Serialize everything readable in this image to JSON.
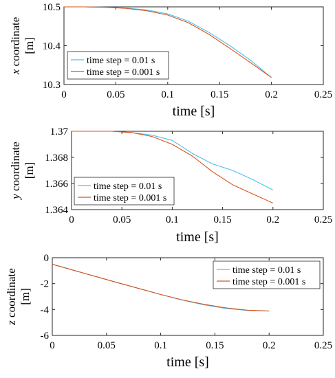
{
  "colors": {
    "series1": "#4dbeee",
    "series2": "#d95319",
    "axis": "#262626",
    "frame": "#262626"
  },
  "chart_data": [
    {
      "type": "line",
      "xlabel": "time [s]",
      "ylabel_var": "x",
      "ylabel_rest": " coordinate",
      "ylabel_unit": "[m]",
      "xlim": [
        0,
        0.25
      ],
      "ylim": [
        10.3,
        10.5
      ],
      "xticks": [
        0,
        0.05,
        0.1,
        0.15,
        0.2,
        0.25
      ],
      "xtick_labels": [
        "0",
        "0.05",
        "0.1",
        "0.15",
        "0.2",
        "0.25"
      ],
      "yticks": [
        10.3,
        10.4,
        10.5
      ],
      "ytick_labels": [
        "10.3",
        "10.4",
        "10.5"
      ],
      "grid": false,
      "legend_position": "lower-left",
      "series": [
        {
          "name": "time step = 0.01 s",
          "color": "#4dbeee",
          "x": [
            0,
            0.02,
            0.04,
            0.06,
            0.08,
            0.1,
            0.12,
            0.14,
            0.16,
            0.18,
            0.2
          ],
          "y": [
            10.5,
            10.5,
            10.499,
            10.497,
            10.492,
            10.482,
            10.463,
            10.434,
            10.4,
            10.362,
            10.318
          ]
        },
        {
          "name": "time step = 0.001 s",
          "color": "#d95319",
          "x": [
            0,
            0.02,
            0.04,
            0.06,
            0.08,
            0.1,
            0.12,
            0.14,
            0.16,
            0.18,
            0.2
          ],
          "y": [
            10.5,
            10.5,
            10.499,
            10.496,
            10.49,
            10.479,
            10.459,
            10.429,
            10.393,
            10.356,
            10.318
          ]
        }
      ]
    },
    {
      "type": "line",
      "xlabel": "time [s]",
      "ylabel_var": "y",
      "ylabel_rest": " coordinate",
      "ylabel_unit": "[m]",
      "xlim": [
        0,
        0.25
      ],
      "ylim": [
        1.364,
        1.37
      ],
      "xticks": [
        0,
        0.05,
        0.1,
        0.15,
        0.2,
        0.25
      ],
      "xtick_labels": [
        "0",
        "0.05",
        "0.1",
        "0.15",
        "0.2",
        "0.25"
      ],
      "yticks": [
        1.364,
        1.366,
        1.368,
        1.37
      ],
      "ytick_labels": [
        "1.364",
        "1.366",
        "1.368",
        "1.37"
      ],
      "grid": false,
      "legend_position": "lower-left",
      "series": [
        {
          "name": "time step = 0.01 s",
          "color": "#4dbeee",
          "x": [
            0,
            0.02,
            0.04,
            0.06,
            0.08,
            0.1,
            0.12,
            0.14,
            0.16,
            0.18,
            0.2
          ],
          "y": [
            1.37,
            1.37,
            1.37,
            1.3699,
            1.3697,
            1.3693,
            1.3683,
            1.3675,
            1.367,
            1.3663,
            1.3655
          ]
        },
        {
          "name": "time step = 0.001 s",
          "color": "#d95319",
          "x": [
            0,
            0.02,
            0.04,
            0.06,
            0.08,
            0.1,
            0.12,
            0.14,
            0.16,
            0.18,
            0.2
          ],
          "y": [
            1.37,
            1.37,
            1.37,
            1.3699,
            1.3696,
            1.369,
            1.3681,
            1.3669,
            1.3659,
            1.3652,
            1.3645
          ]
        }
      ]
    },
    {
      "type": "line",
      "xlabel": "time [s]",
      "ylabel_var": "z",
      "ylabel_rest": " coordinate",
      "ylabel_unit": "[m]",
      "xlim": [
        0,
        0.25
      ],
      "ylim": [
        -6,
        0
      ],
      "xticks": [
        0,
        0.05,
        0.1,
        0.15,
        0.2,
        0.25
      ],
      "xtick_labels": [
        "0",
        "0.05",
        "0.1",
        "0.15",
        "0.2",
        "0.25"
      ],
      "yticks": [
        -6,
        -4,
        -2,
        0
      ],
      "ytick_labels": [
        "-6",
        "-4",
        "-2",
        "0"
      ],
      "grid": false,
      "legend_position": "top-right",
      "series": [
        {
          "name": "time step = 0.01 s",
          "color": "#4dbeee",
          "x": [
            0,
            0.02,
            0.04,
            0.06,
            0.08,
            0.1,
            0.12,
            0.14,
            0.16,
            0.18,
            0.2
          ],
          "y": [
            -0.5,
            -0.98,
            -1.45,
            -1.92,
            -2.38,
            -2.84,
            -3.28,
            -3.64,
            -3.92,
            -4.07,
            -4.12
          ]
        },
        {
          "name": "time step = 0.001 s",
          "color": "#d95319",
          "x": [
            0,
            0.02,
            0.04,
            0.06,
            0.08,
            0.1,
            0.12,
            0.14,
            0.16,
            0.18,
            0.2
          ],
          "y": [
            -0.5,
            -0.98,
            -1.45,
            -1.92,
            -2.38,
            -2.84,
            -3.26,
            -3.6,
            -3.87,
            -4.05,
            -4.12
          ]
        }
      ]
    }
  ]
}
